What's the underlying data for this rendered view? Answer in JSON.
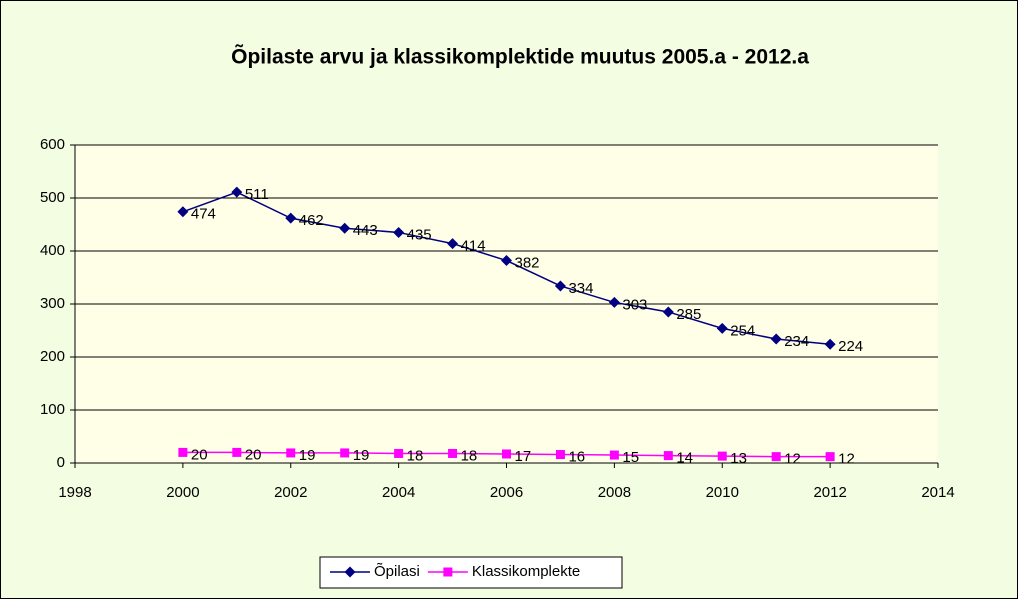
{
  "chart_data": {
    "type": "line",
    "title": "Õpilaste arvu ja klassikomplektide  muutus 2005.a - 2012.a",
    "x": [
      2000,
      2001,
      2002,
      2003,
      2004,
      2005,
      2006,
      2007,
      2008,
      2009,
      2010,
      2011,
      2012
    ],
    "series": [
      {
        "name": "Õpilasi",
        "color": "#000080",
        "marker": "diamond",
        "values": [
          474,
          511,
          462,
          443,
          435,
          414,
          382,
          334,
          303,
          285,
          254,
          234,
          224
        ]
      },
      {
        "name": "Klassikomplekte",
        "color": "#ff00ff",
        "marker": "square",
        "values": [
          20,
          20,
          19,
          19,
          18,
          18,
          17,
          16,
          15,
          14,
          13,
          12,
          12
        ]
      }
    ],
    "xlim": [
      1998,
      2014
    ],
    "xticks": [
      1998,
      2000,
      2002,
      2004,
      2006,
      2008,
      2010,
      2012,
      2014
    ],
    "ylim": [
      0,
      600
    ],
    "yticks": [
      0,
      100,
      200,
      300,
      400,
      500,
      600
    ],
    "grid": true,
    "legend": "bottom"
  }
}
